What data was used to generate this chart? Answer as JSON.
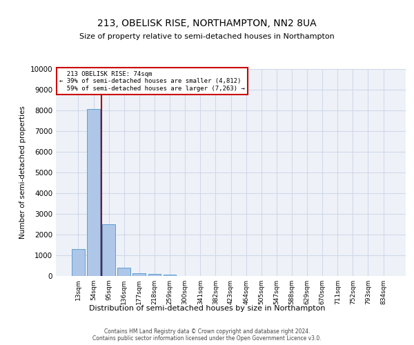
{
  "title": "213, OBELISK RISE, NORTHAMPTON, NN2 8UA",
  "subtitle": "Size of property relative to semi-detached houses in Northampton",
  "xlabel": "Distribution of semi-detached houses by size in Northampton",
  "ylabel": "Number of semi-detached properties",
  "categories": [
    "13sqm",
    "54sqm",
    "95sqm",
    "136sqm",
    "177sqm",
    "218sqm",
    "259sqm",
    "300sqm",
    "341sqm",
    "382sqm",
    "423sqm",
    "464sqm",
    "505sqm",
    "547sqm",
    "588sqm",
    "629sqm",
    "670sqm",
    "711sqm",
    "752sqm",
    "793sqm",
    "834sqm"
  ],
  "values": [
    1300,
    8050,
    2500,
    400,
    150,
    100,
    80,
    0,
    0,
    0,
    0,
    0,
    0,
    0,
    0,
    0,
    0,
    0,
    0,
    0,
    0
  ],
  "bar_color": "#aec6e8",
  "bar_edge_color": "#5a9fd4",
  "grid_color": "#d0d8e8",
  "background_color": "#eef2f8",
  "ylim": [
    0,
    10000
  ],
  "yticks": [
    0,
    1000,
    2000,
    3000,
    4000,
    5000,
    6000,
    7000,
    8000,
    9000,
    10000
  ],
  "property_label": "213 OBELISK RISE: 74sqm",
  "pct_smaller": 39,
  "n_smaller": 4812,
  "pct_larger": 59,
  "n_larger": 7263,
  "vline_color": "#aa0000",
  "annotation_box_edge": "#cc0000",
  "footer_line1": "Contains HM Land Registry data © Crown copyright and database right 2024.",
  "footer_line2": "Contains public sector information licensed under the Open Government Licence v3.0."
}
